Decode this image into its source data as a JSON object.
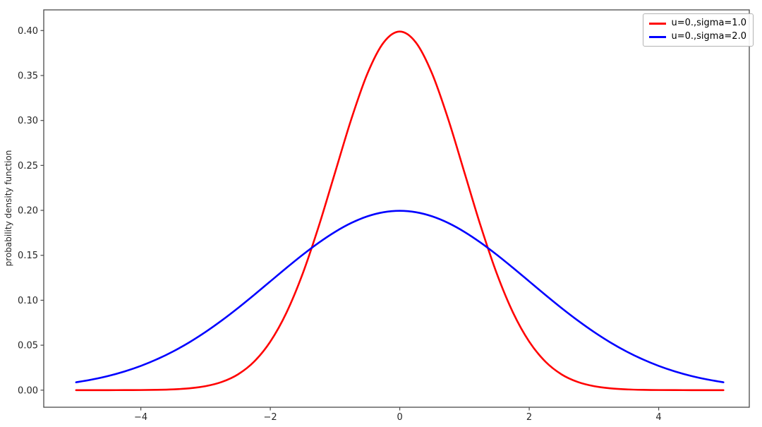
{
  "figure": {
    "background": "#ffffff"
  },
  "chart_data": {
    "type": "line",
    "title": "",
    "xlabel": "",
    "ylabel": "probability density function",
    "xlim": [
      -5.5,
      5.4
    ],
    "ylim": [
      -0.019,
      0.423
    ],
    "xtick_values": [
      -4,
      -2,
      0,
      2,
      4
    ],
    "xtick_labels": [
      "−4",
      "−2",
      "0",
      "2",
      "4"
    ],
    "ytick_values": [
      0.0,
      0.05,
      0.1,
      0.15,
      0.2,
      0.25,
      0.3,
      0.35,
      0.4
    ],
    "ytick_labels": [
      "0.00",
      "0.05",
      "0.10",
      "0.15",
      "0.20",
      "0.25",
      "0.30",
      "0.35",
      "0.40"
    ],
    "grid": false,
    "legend_position": "upper right",
    "axis_color": "#4a4a4a",
    "x": [
      -5,
      -4.75,
      -4.5,
      -4.25,
      -4,
      -3.75,
      -3.5,
      -3.25,
      -3,
      -2.75,
      -2.5,
      -2.25,
      -2,
      -1.75,
      -1.5,
      -1.25,
      -1,
      -0.75,
      -0.5,
      -0.25,
      0,
      0.25,
      0.5,
      0.75,
      1,
      1.25,
      1.5,
      1.75,
      2,
      2.25,
      2.5,
      2.75,
      3,
      3.25,
      3.5,
      3.75,
      4,
      4.25,
      4.5,
      4.75,
      5
    ],
    "series": [
      {
        "name": "u=0.,sigma=1.0",
        "color": "#ff0000",
        "values": [
          0.0,
          1e-05,
          2e-05,
          5e-05,
          0.00013,
          0.00035,
          0.00087,
          0.00203,
          0.00443,
          0.0091,
          0.01753,
          0.03174,
          0.05399,
          0.08628,
          0.12952,
          0.18265,
          0.24197,
          0.30114,
          0.35207,
          0.38667,
          0.39894,
          0.38667,
          0.35207,
          0.30114,
          0.24197,
          0.18265,
          0.12952,
          0.08628,
          0.05399,
          0.03174,
          0.01753,
          0.0091,
          0.00443,
          0.00203,
          0.00087,
          0.00035,
          0.00013,
          5e-05,
          2e-05,
          1e-05,
          0.0
        ]
      },
      {
        "name": "u=0.,sigma=2.0",
        "color": "#0000ff",
        "values": [
          0.00876,
          0.01189,
          0.01587,
          0.02087,
          0.027,
          0.03439,
          0.04314,
          0.05327,
          0.06476,
          0.0775,
          0.09132,
          0.10594,
          0.12099,
          0.13603,
          0.15057,
          0.16408,
          0.17603,
          0.18593,
          0.19333,
          0.19792,
          0.19947,
          0.19792,
          0.19333,
          0.18593,
          0.17603,
          0.16408,
          0.15057,
          0.13603,
          0.12099,
          0.10594,
          0.09132,
          0.0775,
          0.06476,
          0.05327,
          0.04314,
          0.03439,
          0.027,
          0.02087,
          0.01587,
          0.01189,
          0.00876
        ]
      }
    ]
  }
}
